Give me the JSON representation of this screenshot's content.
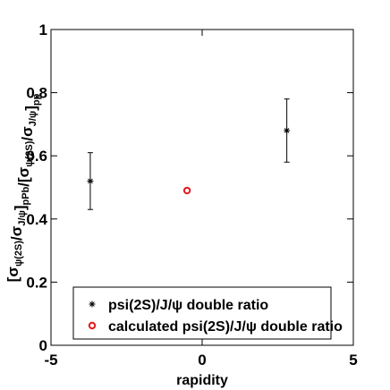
{
  "chart_data": {
    "type": "scatter",
    "xlabel": "rapidity",
    "ylabel": {
      "parts": [
        {
          "t": "[σ",
          "sub": false
        },
        {
          "t": "ψ(2S)",
          "sub": true
        },
        {
          "t": "/σ",
          "sub": false
        },
        {
          "t": "J/ψ",
          "sub": true
        },
        {
          "t": "]",
          "sub": false
        },
        {
          "t": "pPb",
          "sub": true
        },
        {
          "t": "/[σ",
          "sub": false
        },
        {
          "t": "ψ(2S)",
          "sub": true
        },
        {
          "t": "/σ",
          "sub": false
        },
        {
          "t": "J/ψ",
          "sub": true
        },
        {
          "t": "]",
          "sub": false
        },
        {
          "t": "pp",
          "sub": true
        }
      ]
    },
    "xlim": [
      -5,
      5
    ],
    "ylim": [
      0,
      1
    ],
    "xticks": [
      -5,
      0,
      5
    ],
    "xtick_labels": [
      "-5",
      "0",
      "5"
    ],
    "yticks": [
      0,
      0.2,
      0.4,
      0.6,
      0.8,
      1
    ],
    "ytick_labels": [
      "0",
      "0.2",
      "0.4",
      "0.6",
      "0.8",
      "1"
    ],
    "grid": false,
    "legend_position": "bottom-right",
    "series": [
      {
        "name": "psi(2S)/J/ψ double ratio",
        "marker": "asterisk",
        "color": "#000000",
        "points": [
          {
            "x": -3.7,
            "y": 0.52,
            "ylow": 0.43,
            "yhigh": 0.61
          },
          {
            "x": 2.8,
            "y": 0.68,
            "ylow": 0.58,
            "yhigh": 0.78
          }
        ]
      },
      {
        "name": "calculated psi(2S)/J/ψ double ratio",
        "marker": "circle",
        "color": "#e31a1c",
        "points": [
          {
            "x": -0.5,
            "y": 0.49
          }
        ]
      }
    ]
  }
}
